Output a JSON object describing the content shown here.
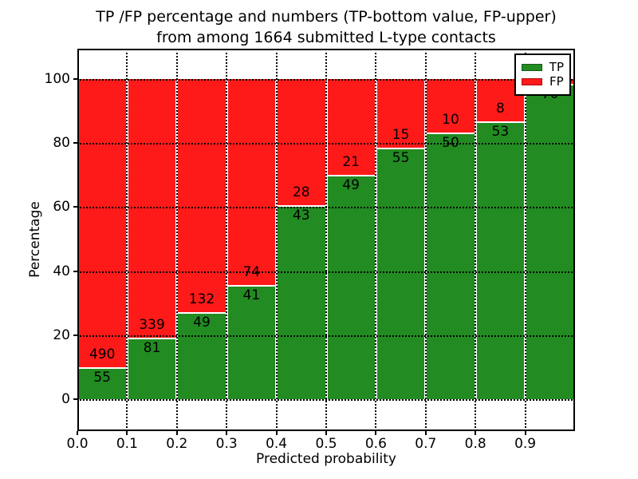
{
  "title": {
    "line1": "TP /FP percentage and numbers (TP-bottom value, FP-upper)",
    "line2": "from among 1664 submitted L-type contacts"
  },
  "axes": {
    "xlabel": "Predicted probability",
    "ylabel": "Percentage",
    "xtick_labels": [
      "0.0",
      "0.1",
      "0.2",
      "0.3",
      "0.4",
      "0.5",
      "0.6",
      "0.7",
      "0.8",
      "0.9"
    ],
    "ytick_labels": [
      "0",
      "20",
      "40",
      "60",
      "80",
      "100"
    ],
    "ytick_values": [
      0,
      20,
      40,
      60,
      80,
      100
    ],
    "grid_style": "dotted"
  },
  "legend": {
    "position": "upper-right",
    "entries": [
      {
        "label": "TP",
        "color": "#228b22"
      },
      {
        "label": "FP",
        "color": "#ff1a1a"
      }
    ]
  },
  "chart_data": {
    "type": "bar",
    "stacked": true,
    "normalized_to_percent": true,
    "title": "TP /FP percentage and numbers (TP-bottom value, FP-upper) from among 1664 submitted L-type contacts",
    "xlabel": "Predicted probability",
    "ylabel": "Percentage",
    "total_contacts": 1664,
    "bins": [
      [
        0.0,
        0.1
      ],
      [
        0.1,
        0.2
      ],
      [
        0.2,
        0.3
      ],
      [
        0.3,
        0.4
      ],
      [
        0.4,
        0.5
      ],
      [
        0.5,
        0.6
      ],
      [
        0.6,
        0.7
      ],
      [
        0.7,
        0.8
      ],
      [
        0.8,
        0.9
      ],
      [
        0.9,
        1.0
      ]
    ],
    "series": [
      {
        "name": "TP",
        "color": "#228b22",
        "counts": [
          55,
          81,
          49,
          41,
          43,
          49,
          55,
          50,
          53,
          70
        ]
      },
      {
        "name": "FP",
        "color": "#ff1a1a",
        "counts": [
          490,
          339,
          132,
          74,
          28,
          21,
          15,
          10,
          8,
          1
        ]
      }
    ],
    "tp_percent": [
      10.1,
      19.3,
      27.1,
      35.7,
      60.6,
      70.0,
      78.6,
      83.3,
      86.9,
      98.6
    ],
    "xlim": [
      0.0,
      1.0
    ],
    "ylim": [
      -10,
      110
    ],
    "grid": true,
    "legend_position": "upper-right"
  }
}
